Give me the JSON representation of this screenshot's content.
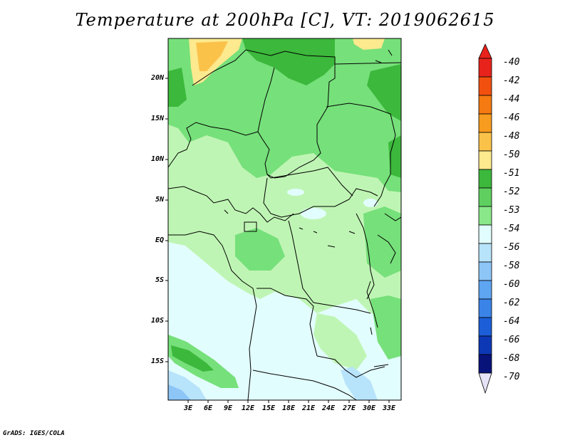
{
  "title": "Temperature at 200hPa [C], VT: 2019062615",
  "credit": "GrADS: IGES/COLA",
  "lat_labels": [
    "20N",
    "15N",
    "10N",
    "5N",
    "EQ",
    "5S",
    "10S",
    "15S"
  ],
  "lon_labels": [
    "3E",
    "6E",
    "9E",
    "12E",
    "15E",
    "18E",
    "21E",
    "24E",
    "27E",
    "30E",
    "33E"
  ],
  "colorbar": {
    "labels": [
      "-40",
      "-42",
      "-44",
      "-46",
      "-48",
      "-50",
      "-51",
      "-52",
      "-53",
      "-54",
      "-56",
      "-58",
      "-60",
      "-62",
      "-64",
      "-66",
      "-68",
      "-70"
    ],
    "colors": [
      "#e8231c",
      "#f2500f",
      "#f57a12",
      "#f79c1e",
      "#fbc24a",
      "#fde98e",
      "#fffbc8",
      "#3cb83c",
      "#76e07a",
      "#bff5b4",
      "#e2fdfd",
      "#b7e3fb",
      "#8dc5f7",
      "#5ea5f2",
      "#3a84e8",
      "#1c5ed7",
      "#0d38b5",
      "#08137a"
    ],
    "top_triangle_color": "#e8231c",
    "bottom_triangle_color": "#e6e2f7"
  },
  "field_colors": {
    "dark_green": "#3cb83c",
    "mid_green": "#76e07a",
    "light_green": "#bff5b4",
    "pale_cyan": "#e2fdfd",
    "light_blue": "#b7e3fb",
    "mid_blue": "#8dc5f7",
    "pale_yellow": "#fde98e",
    "yellow": "#fbc24a"
  }
}
